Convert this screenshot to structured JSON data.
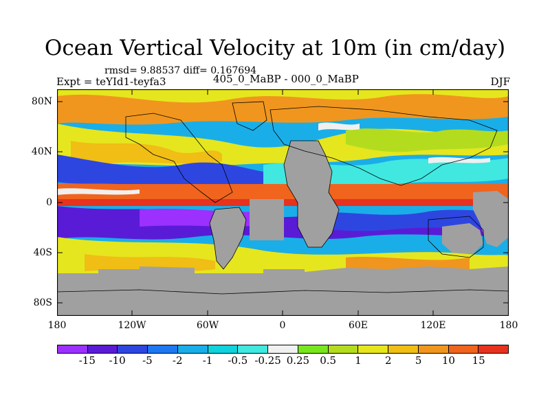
{
  "title": "Ocean Vertical Velocity at 10m (in cm/day)",
  "stats": "rmsd= 9.88537  diff= 0.167694",
  "experiment": "Expt = teYId1-teyfa3",
  "difference_label": "405_0_MaBP - 000_0_MaBP",
  "season": "DJF",
  "map": {
    "lat_ticks": [
      "80N",
      "40N",
      "0",
      "40S",
      "80S"
    ],
    "lon_ticks": [
      "180",
      "120W",
      "60W",
      "0",
      "60E",
      "120E",
      "180"
    ],
    "land_color": "#a0a0a0"
  },
  "colorbar": {
    "colors": [
      "#9b30ff",
      "#5a1bd6",
      "#2e46e0",
      "#1e78f0",
      "#1aaee8",
      "#10d2dc",
      "#40e8e0",
      "#f0f0f0",
      "#78e61e",
      "#b4dc1e",
      "#e6e61e",
      "#f0be14",
      "#f0961e",
      "#f0641e",
      "#e6321e"
    ],
    "labels": [
      "-15",
      "-10",
      "-5",
      "-2",
      "-1",
      "-0.5",
      "-0.25",
      "0.25",
      "0.5",
      "1",
      "2",
      "5",
      "10",
      "15"
    ]
  }
}
